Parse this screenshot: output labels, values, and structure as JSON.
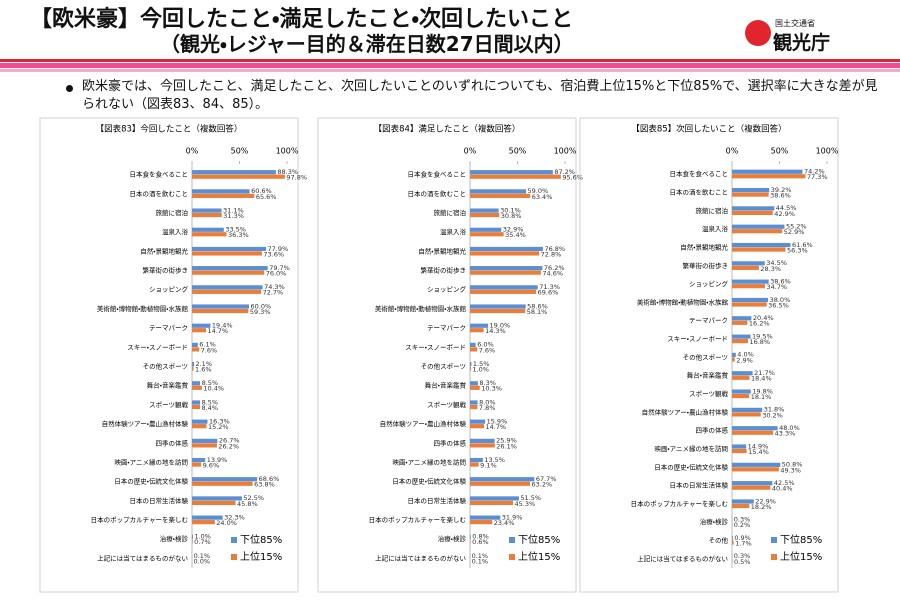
{
  "header": {
    "title": "【欧米豪】今回したこと・満足したこと・次回したいこと",
    "subtitle": "（観光・レジャー目的＆滞在日数27日間以内）",
    "agency": "国土交通省",
    "logo": "観光庁"
  },
  "bullet": "欧米豪では、今回したこと、満足したこと、次回したいことのいずれについても、宿泊費上位15%と下位85%で、選択率に大きな差が見られない（図表83、84、85）。",
  "chart_data": [
    {
      "type": "hbar",
      "title": "【図表83】今回したこと（複数回答）",
      "legend": "lower right",
      "xlim": [
        0,
        100
      ],
      "xticks": [
        {
          "value": 0,
          "label": "0%"
        },
        {
          "value": 50,
          "label": "50%"
        },
        {
          "value": 100,
          "label": "100%"
        }
      ],
      "categories": [
        "日本食を食べること",
        "日本の酒を飲むこと",
        "旅館に宿泊",
        "温泉入浴",
        "自然・景観地観光",
        "繁華街の街歩き",
        "ショッピング",
        "美術館・博物館・動植物園・水族館",
        "テーマパーク",
        "スキー・スノーボード",
        "その他スポーツ",
        "舞台・音楽鑑賞",
        "スポーツ観戦",
        "自然体験ツアー・農山漁村体験",
        "四季の体感",
        "映画・アニメ縁の地を訪問",
        "日本の歴史・伝統文化体験",
        "日本の日常生活体験",
        "日本のポップカルチャーを楽しむ",
        "治療・検診",
        "上記には当てはまるものがない"
      ],
      "series": [
        {
          "name": "下位85%",
          "color": "#5b8fd2",
          "values": [
            88.3,
            60.6,
            31.1,
            33.5,
            77.9,
            79.7,
            74.3,
            60.0,
            19.4,
            6.1,
            2.1,
            8.5,
            8.5,
            16.3,
            26.7,
            13.9,
            68.6,
            52.5,
            32.3,
            1.0,
            0.1
          ],
          "value_labels": [
            "88.3%",
            "60.6%",
            "31.1%",
            "33.5%",
            "77.9%",
            "79.7%",
            "74.3%",
            "60.0%",
            "19.4%",
            "6.1%",
            "2.1%",
            "8.5%",
            "8.5%",
            "16.3%",
            "26.7%",
            "13.9%",
            "68.6%",
            "52.5%",
            "32.3%",
            "1.0%",
            "0.1%"
          ]
        },
        {
          "name": "上位15%",
          "color": "#ea7d3a",
          "values": [
            97.8,
            65.6,
            31.3,
            36.3,
            73.6,
            76.0,
            72.7,
            59.3,
            14.7,
            7.6,
            1.6,
            10.4,
            8.4,
            15.2,
            26.2,
            9.6,
            63.8,
            45.8,
            24.0,
            0.7,
            0.0
          ],
          "value_labels": [
            "97.8%",
            "65.6%",
            "31.3%",
            "36.3%",
            "73.6%",
            "76.0%",
            "72.7%",
            "59.3%",
            "14.7%",
            "7.6%",
            "1.6%",
            "10.4%",
            "8.4%",
            "15.2%",
            "26.2%",
            "9.6%",
            "63.8%",
            "45.8%",
            "24.0%",
            "0.7%",
            "0.0%"
          ]
        }
      ]
    },
    {
      "type": "hbar",
      "title": "【図表84】満足したこと（複数回答）",
      "legend": "lower right",
      "xlim": [
        0,
        100
      ],
      "xticks": [
        {
          "value": 0,
          "label": "0%"
        },
        {
          "value": 50,
          "label": "50%"
        },
        {
          "value": 100,
          "label": "100%"
        }
      ],
      "categories": [
        "日本食を食べること",
        "日本の酒を飲むこと",
        "旅館に宿泊",
        "温泉入浴",
        "自然・景観地観光",
        "繁華街の街歩き",
        "ショッピング",
        "美術館・博物館・動植物園・水族館",
        "テーマパーク",
        "スキー・スノーボード",
        "その他スポーツ",
        "舞台・音楽鑑賞",
        "スポーツ観戦",
        "自然体験ツアー・農山漁村体験",
        "四季の体感",
        "映画・アニメ縁の地を訪問",
        "日本の歴史・伝統文化体験",
        "日本の日常生活体験",
        "日本のポップカルチャーを楽しむ",
        "治療・検診",
        "上記には当てはまるものがない"
      ],
      "series": [
        {
          "name": "下位85%",
          "color": "#5b8fd2",
          "values": [
            87.2,
            59.0,
            30.1,
            32.9,
            76.8,
            76.2,
            71.3,
            58.6,
            19.0,
            6.0,
            1.5,
            8.3,
            8.0,
            15.9,
            25.9,
            13.5,
            67.7,
            51.5,
            31.9,
            0.8,
            0.1
          ],
          "value_labels": [
            "87.2%",
            "59.0%",
            "30.1%",
            "32.9%",
            "76.8%",
            "76.2%",
            "71.3%",
            "58.6%",
            "19.0%",
            "6.0%",
            "1.5%",
            "8.3%",
            "8.0%",
            "15.9%",
            "25.9%",
            "13.5%",
            "67.7%",
            "51.5%",
            "31.9%",
            "0.8%",
            "0.1%"
          ]
        },
        {
          "name": "上位15%",
          "color": "#ea7d3a",
          "values": [
            95.6,
            63.4,
            30.8,
            35.4,
            72.8,
            74.6,
            69.6,
            58.1,
            14.3,
            7.6,
            1.0,
            10.3,
            7.8,
            14.7,
            26.1,
            9.1,
            63.2,
            45.3,
            23.4,
            0.6,
            0.1
          ],
          "value_labels": [
            "95.6%",
            "63.4%",
            "30.8%",
            "35.4%",
            "72.8%",
            "74.6%",
            "69.6%",
            "58.1%",
            "14.3%",
            "7.6%",
            "1.0%",
            "10.3%",
            "7.8%",
            "14.7%",
            "26.1%",
            "9.1%",
            "63.2%",
            "45.3%",
            "23.4%",
            "0.6%",
            "0.1%"
          ]
        }
      ]
    },
    {
      "type": "hbar",
      "title": "【図表85】次回したいこと（複数回答）",
      "legend": "lower right",
      "xlim": [
        0,
        100
      ],
      "xticks": [
        {
          "value": 0,
          "label": "0%"
        },
        {
          "value": 50,
          "label": "50%"
        },
        {
          "value": 100,
          "label": "100%"
        }
      ],
      "categories": [
        "日本食を食べること",
        "日本の酒を飲むこと",
        "旅館に宿泊",
        "温泉入浴",
        "自然・景観地観光",
        "繁華街の街歩き",
        "ショッピング",
        "美術館・博物館・動植物園・水族館",
        "テーマパーク",
        "スキー・スノーボード",
        "その他スポーツ",
        "舞台・音楽鑑賞",
        "スポーツ観戦",
        "自然体験ツアー・農山漁村体験",
        "四季の体感",
        "映画・アニメ縁の地を訪問",
        "日本の歴史・伝統文化体験",
        "日本の日常生活体験",
        "日本のポップカルチャーを楽しむ",
        "治療・検診",
        "その他",
        "上記には当てはまるものがない"
      ],
      "series": [
        {
          "name": "下位85%",
          "color": "#5b8fd2",
          "values": [
            74.2,
            39.2,
            44.5,
            55.2,
            61.6,
            34.5,
            38.6,
            38.0,
            20.4,
            19.5,
            4.0,
            21.7,
            19.8,
            31.8,
            48.0,
            14.9,
            50.8,
            42.5,
            22.9,
            0.3,
            0.9,
            0.3
          ],
          "value_labels": [
            "74.2%",
            "39.2%",
            "44.5%",
            "55.2%",
            "61.6%",
            "34.5%",
            "38.6%",
            "38.0%",
            "20.4%",
            "19.5%",
            "4.0%",
            "21.7%",
            "19.8%",
            "31.8%",
            "48.0%",
            "14.9%",
            "50.8%",
            "42.5%",
            "22.9%",
            "0.3%",
            "0.9%",
            "0.3%"
          ]
        },
        {
          "name": "上位15%",
          "color": "#ea7d3a",
          "values": [
            77.3,
            38.6,
            42.9,
            52.9,
            56.3,
            28.3,
            34.7,
            36.5,
            16.2,
            16.8,
            2.9,
            18.4,
            18.1,
            30.2,
            43.3,
            15.4,
            49.3,
            40.4,
            18.2,
            0.2,
            1.7,
            0.5
          ],
          "value_labels": [
            "77.3%",
            "38.6%",
            "42.9%",
            "52.9%",
            "56.3%",
            "28.3%",
            "34.7%",
            "36.5%",
            "16.2%",
            "16.8%",
            "2.9%",
            "18.4%",
            "18.1%",
            "30.2%",
            "43.3%",
            "15.4%",
            "49.3%",
            "40.4%",
            "18.2%",
            "0.2%",
            "1.7%",
            "0.5%"
          ]
        }
      ]
    }
  ]
}
